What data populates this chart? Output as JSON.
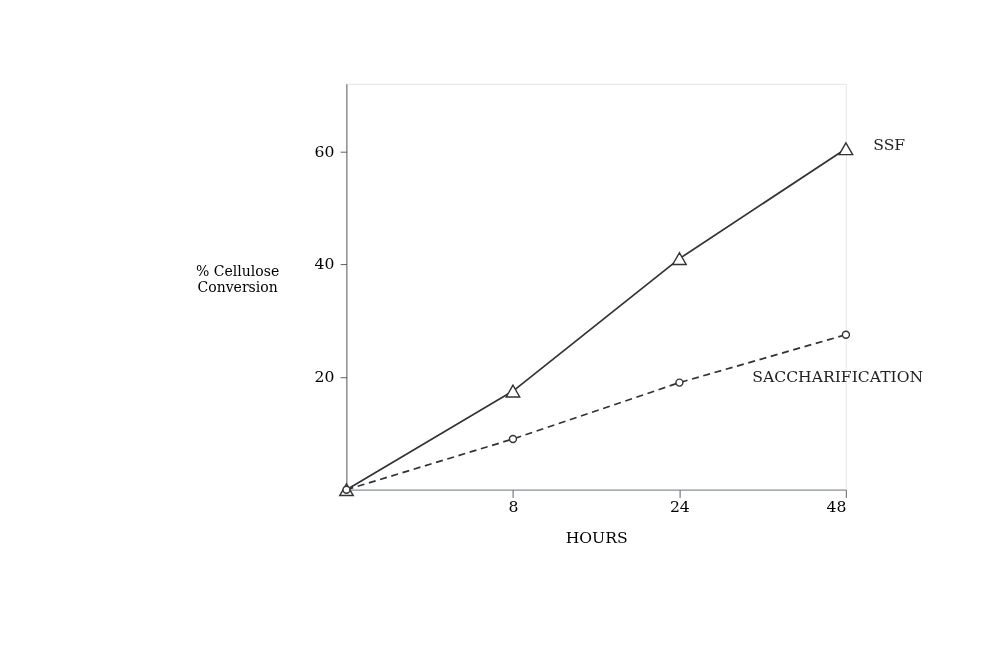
{
  "chart_data": {
    "type": "line",
    "xlabel": "HOURS",
    "ylabel": "% Cellulose\nConversion",
    "categories": [
      null,
      "8",
      "24",
      "48"
    ],
    "ylim": [
      0,
      72
    ],
    "yticks": [
      20,
      40,
      60
    ],
    "series": [
      {
        "name": "SSF",
        "color": "#333333",
        "marker": "triangle",
        "line_style": "solid",
        "values": [
          0,
          17.5,
          41,
          60.5
        ]
      },
      {
        "name": "SACCHARIFICATION",
        "color": "#333333",
        "marker": "circle",
        "line_style": "dashed",
        "values": [
          0,
          9,
          19,
          27.5
        ]
      }
    ]
  }
}
